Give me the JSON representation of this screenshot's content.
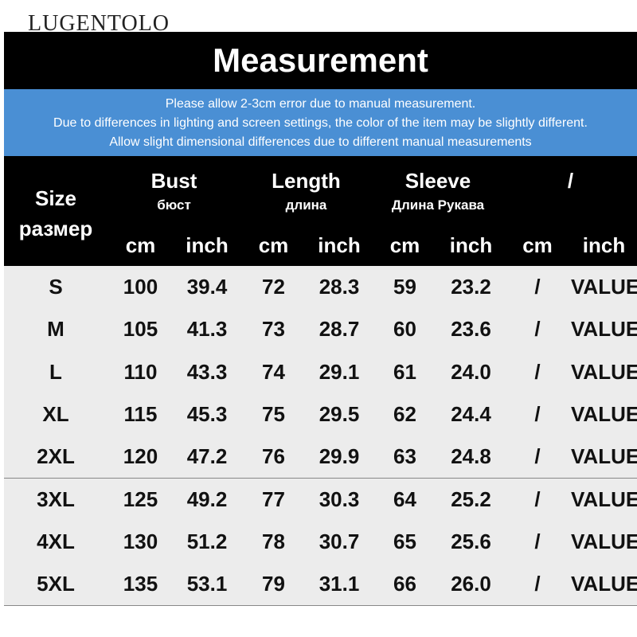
{
  "header": {
    "brand": "LUGENTOLO",
    "title": "Measurement",
    "notes": [
      "Please allow 2-3cm error due to manual measurement.",
      "Due to differences in lighting and screen settings, the color of the item may be slightly different.",
      "Allow slight dimensional differences due to different manual measurements"
    ]
  },
  "table": {
    "size_header": [
      "Size",
      "размер"
    ],
    "groups": [
      {
        "name": "Bust",
        "sub": "бюст"
      },
      {
        "name": "Length",
        "sub": "длина"
      },
      {
        "name": "Sleeve",
        "sub": "Длина Рукава"
      },
      {
        "name": "/"
      }
    ],
    "units": [
      "cm",
      "inch",
      "cm",
      "inch",
      "cm",
      "inch",
      "cm",
      "inch"
    ],
    "rows": [
      [
        "S",
        "100",
        "39.4",
        "72",
        "28.3",
        "59",
        "23.2",
        "/",
        "VALUE"
      ],
      [
        "M",
        "105",
        "41.3",
        "73",
        "28.7",
        "60",
        "23.6",
        "/",
        "VALUE"
      ],
      [
        "L",
        "110",
        "43.3",
        "74",
        "29.1",
        "61",
        "24.0",
        "/",
        "VALUE"
      ],
      [
        "XL",
        "115",
        "45.3",
        "75",
        "29.5",
        "62",
        "24.4",
        "/",
        "VALUE"
      ],
      [
        "2XL",
        "120",
        "47.2",
        "76",
        "29.9",
        "63",
        "24.8",
        "/",
        "VALUE"
      ],
      [
        "3XL",
        "125",
        "49.2",
        "77",
        "30.3",
        "64",
        "25.2",
        "/",
        "VALUE"
      ],
      [
        "4XL",
        "130",
        "51.2",
        "78",
        "30.7",
        "65",
        "25.6",
        "/",
        "VALUE"
      ],
      [
        "5XL",
        "135",
        "53.1",
        "79",
        "31.1",
        "66",
        "26.0",
        "/",
        "VALUE"
      ]
    ]
  }
}
